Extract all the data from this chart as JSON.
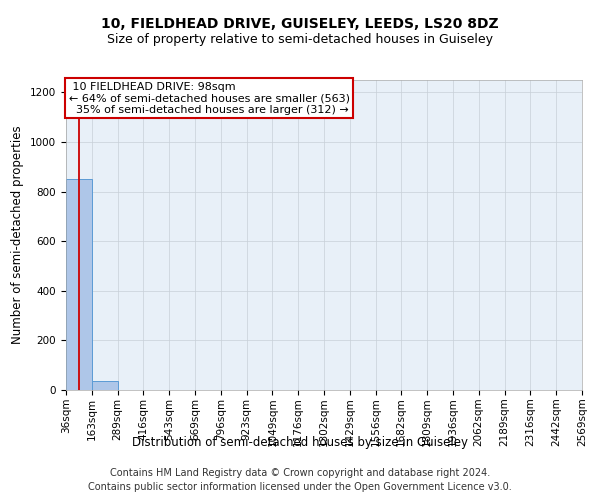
{
  "title": "10, FIELDHEAD DRIVE, GUISELEY, LEEDS, LS20 8DZ",
  "subtitle": "Size of property relative to semi-detached houses in Guiseley",
  "xlabel": "Distribution of semi-detached houses by size in Guiseley",
  "ylabel": "Number of semi-detached properties",
  "bin_edges": [
    36,
    163,
    289,
    416,
    543,
    669,
    796,
    923,
    1049,
    1176,
    1302,
    1429,
    1556,
    1682,
    1809,
    1936,
    2062,
    2189,
    2316,
    2442,
    2569
  ],
  "bin_heights": [
    850,
    38,
    0,
    0,
    0,
    0,
    0,
    0,
    0,
    0,
    0,
    0,
    0,
    0,
    0,
    0,
    0,
    0,
    0,
    0
  ],
  "bar_color": "#aec6e8",
  "bar_edge_color": "#5b9bd5",
  "property_size": 98,
  "property_label": "10 FIELDHEAD DRIVE: 98sqm",
  "pct_smaller": 64,
  "n_smaller": 563,
  "pct_larger": 35,
  "n_larger": 312,
  "vline_color": "#cc0000",
  "ylim": [
    0,
    1250
  ],
  "yticks": [
    0,
    200,
    400,
    600,
    800,
    1000,
    1200
  ],
  "annotation_box_color": "#ffffff",
  "annotation_box_edgecolor": "#cc0000",
  "grid_color": "#c8d0d8",
  "footer_line1": "Contains HM Land Registry data © Crown copyright and database right 2024.",
  "footer_line2": "Contains public sector information licensed under the Open Government Licence v3.0.",
  "title_fontsize": 10,
  "subtitle_fontsize": 9,
  "axis_label_fontsize": 8.5,
  "tick_fontsize": 7.5,
  "annotation_fontsize": 8,
  "footer_fontsize": 7
}
